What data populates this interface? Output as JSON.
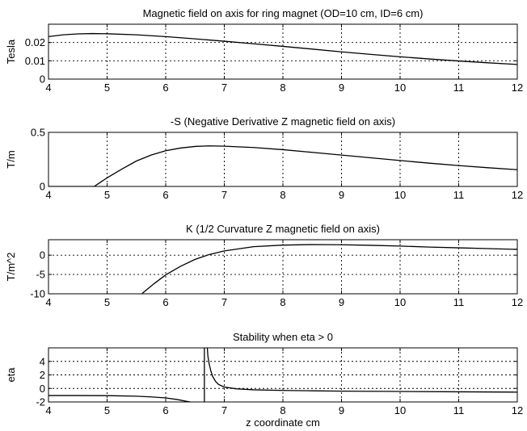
{
  "chart_data": [
    {
      "type": "line",
      "title": "Magnetic field on axis for ring magnet (OD=10 cm, ID=6 cm)",
      "xlabel": "",
      "ylabel": "Tesla",
      "xlim": [
        4,
        12
      ],
      "ylim": [
        0,
        0.03
      ],
      "xticks": [
        4,
        5,
        6,
        7,
        8,
        9,
        10,
        11,
        12
      ],
      "xtick_labels": [
        "4",
        "5",
        "6",
        "7",
        "8",
        "9",
        "10",
        "11",
        "12"
      ],
      "yticks": [
        0,
        0.01,
        0.02
      ],
      "ytick_labels": [
        "0",
        "0.01",
        "0.02"
      ],
      "grid": true,
      "series": [
        {
          "segments": [
            {
              "x": [
                4,
                4.25,
                4.5,
                4.75,
                5,
                5.5,
                6,
                6.5,
                7,
                7.5,
                8,
                8.5,
                9,
                9.5,
                10,
                10.5,
                11,
                11.5,
                12
              ],
              "y": [
                0.0232,
                0.0242,
                0.0247,
                0.0249,
                0.0248,
                0.0242,
                0.0232,
                0.022,
                0.0207,
                0.0193,
                0.0179,
                0.0164,
                0.0149,
                0.0135,
                0.0122,
                0.011,
                0.0099,
                0.0089,
                0.008
              ]
            }
          ]
        }
      ]
    },
    {
      "type": "line",
      "title": "-S (Negative Derivative Z magnetic field on axis)",
      "xlabel": "",
      "ylabel": "T/m",
      "xlim": [
        4,
        12
      ],
      "ylim": [
        0,
        0.5
      ],
      "xticks": [
        4,
        5,
        6,
        7,
        8,
        9,
        10,
        11,
        12
      ],
      "xtick_labels": [
        "4",
        "5",
        "6",
        "7",
        "8",
        "9",
        "10",
        "11",
        "12"
      ],
      "yticks": [
        0,
        0.5
      ],
      "ytick_labels": [
        "0",
        "0.5"
      ],
      "grid": true,
      "series": [
        {
          "segments": [
            {
              "x": [
                4,
                4.5,
                4.78,
                5,
                5.25,
                5.5,
                5.75,
                6,
                6.25,
                6.5,
                6.75,
                7,
                7.5,
                8,
                8.5,
                9,
                9.5,
                10,
                10.5,
                11,
                11.5,
                12
              ],
              "y": [
                0,
                0,
                0,
                0.08,
                0.16,
                0.235,
                0.29,
                0.33,
                0.355,
                0.37,
                0.375,
                0.372,
                0.36,
                0.34,
                0.315,
                0.29,
                0.265,
                0.24,
                0.215,
                0.193,
                0.173,
                0.155
              ]
            }
          ]
        }
      ]
    },
    {
      "type": "line",
      "title": "K (1/2 Curvature Z magnetic field on axis)",
      "xlabel": "",
      "ylabel": "T/m^2",
      "xlim": [
        4,
        12
      ],
      "ylim": [
        -10,
        4
      ],
      "xticks": [
        4,
        5,
        6,
        7,
        8,
        9,
        10,
        11,
        12
      ],
      "xtick_labels": [
        "4",
        "5",
        "6",
        "7",
        "8",
        "9",
        "10",
        "11",
        "12"
      ],
      "yticks": [
        -10,
        -5,
        0
      ],
      "ytick_labels": [
        "-10",
        "-5",
        "0"
      ],
      "grid": true,
      "series": [
        {
          "segments": [
            {
              "x": [
                5.6,
                5.8,
                6,
                6.25,
                6.5,
                6.75,
                7,
                7.5,
                8,
                8.5,
                9,
                9.5,
                10,
                10.5,
                11,
                11.5,
                12
              ],
              "y": [
                -9.9,
                -7.4,
                -5.1,
                -2.9,
                -1.1,
                0.2,
                1.1,
                2.2,
                2.6,
                2.75,
                2.7,
                2.55,
                2.35,
                2.1,
                1.9,
                1.7,
                1.5
              ]
            }
          ]
        }
      ]
    },
    {
      "type": "line",
      "title": "Stability when eta > 0",
      "xlabel": "z coordinate cm",
      "ylabel": "eta",
      "xlim": [
        4,
        12
      ],
      "ylim": [
        -2,
        6
      ],
      "xticks": [
        4,
        5,
        6,
        7,
        8,
        9,
        10,
        11,
        12
      ],
      "xtick_labels": [
        "4",
        "5",
        "6",
        "7",
        "8",
        "9",
        "10",
        "11",
        "12"
      ],
      "yticks": [
        -2,
        0,
        2,
        4
      ],
      "ytick_labels": [
        "-2",
        "0",
        "2",
        "4"
      ],
      "grid": true,
      "vlines": [
        6.66
      ],
      "series": [
        {
          "segments": [
            {
              "x": [
                4,
                4.5,
                5,
                5.5,
                5.75,
                6,
                6.2,
                6.35,
                6.42
              ],
              "y": [
                -1.05,
                -1.05,
                -1.07,
                -1.15,
                -1.25,
                -1.4,
                -1.65,
                -1.9,
                -2
              ]
            },
            {
              "x": [
                6.71,
                6.72,
                6.74,
                6.77,
                6.8,
                6.85,
                6.9,
                7,
                7.2,
                7.5,
                8,
                8.5,
                9,
                10,
                11,
                12
              ],
              "y": [
                6,
                4.8,
                3.7,
                2.6,
                1.8,
                1.05,
                0.6,
                0.2,
                -0.05,
                -0.2,
                -0.3,
                -0.35,
                -0.4,
                -0.45,
                -0.5,
                -0.55
              ]
            }
          ]
        }
      ]
    }
  ]
}
